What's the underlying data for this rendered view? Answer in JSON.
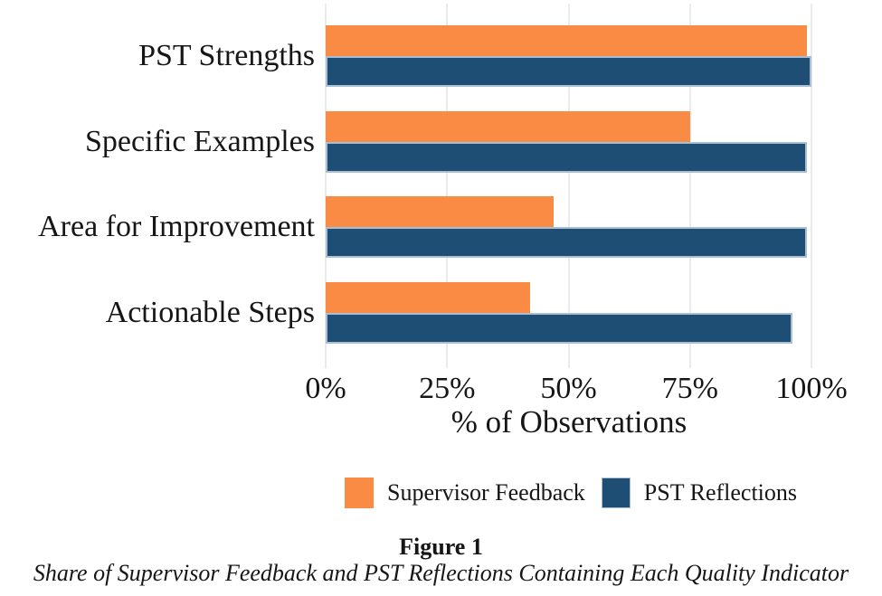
{
  "chart_data": {
    "type": "bar",
    "orientation": "horizontal",
    "categories": [
      "PST Strengths",
      "Specific Examples",
      "Area for Improvement",
      "Actionable Steps"
    ],
    "series": [
      {
        "name": "Supervisor Feedback",
        "color": "#F98B44",
        "values": [
          99,
          75,
          47,
          42
        ]
      },
      {
        "name": "PST Reflections",
        "color": "#1F4E74",
        "values": [
          100,
          99,
          99,
          96
        ]
      }
    ],
    "x_ticks": [
      {
        "label": "0%",
        "value": 0
      },
      {
        "label": "25%",
        "value": 25
      },
      {
        "label": "50%",
        "value": 50
      },
      {
        "label": "75%",
        "value": 75
      },
      {
        "label": "100%",
        "value": 100
      }
    ],
    "xlabel": "% of Observations",
    "xlim": [
      0,
      100
    ],
    "grid": "vertical-major",
    "gridline_color": "#EBEBEB",
    "legend_position": "bottom"
  },
  "caption": {
    "label": "Figure 1",
    "text": "Share of Supervisor Feedback and PST Reflections Containing Each Quality Indicator"
  },
  "colors": {
    "supervisor_feedback": "#F98B44",
    "pst_reflections": "#1F4E74",
    "pst_reflections_border": "#A9BDD3",
    "gridline": "#EBEBEB",
    "text": "#161616"
  }
}
